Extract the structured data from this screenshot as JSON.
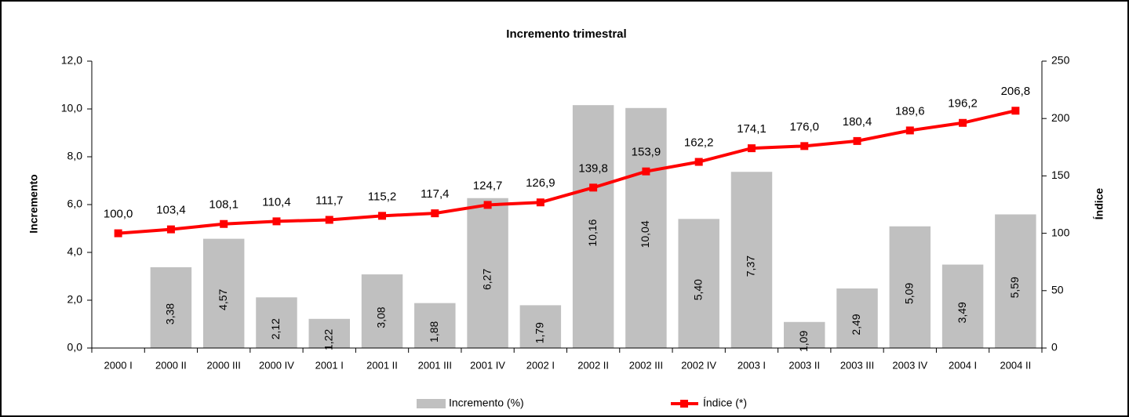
{
  "chart_data": {
    "type": "bar",
    "title": "Incremento trimestral",
    "y_label": "Incremento",
    "y2_label": "Índice",
    "categories": [
      "2000 I",
      "2000 II",
      "2000 III",
      "2000 IV",
      "2001 I",
      "2001 II",
      "2001 III",
      "2001 IV",
      "2002 I",
      "2002 II",
      "2002 III",
      "2002 IV",
      "2003 I",
      "2003 II",
      "2003 III",
      "2003 IV",
      "2004 I",
      "2004 II"
    ],
    "series": [
      {
        "name": "Incremento (%)",
        "type": "bar",
        "color": "#c0c0c0",
        "values": [
          null,
          3.38,
          4.57,
          2.12,
          1.22,
          3.08,
          1.88,
          6.27,
          1.79,
          10.16,
          10.04,
          5.4,
          7.37,
          1.09,
          2.49,
          5.09,
          3.49,
          5.59
        ],
        "value_labels": [
          null,
          "3,38",
          "4,57",
          "2,12",
          "1,22",
          "3,08",
          "1,88",
          "6,27",
          "1,79",
          "10,16",
          "10,04",
          "5,40",
          "7,37",
          "1,09",
          "2,49",
          "5,09",
          "3,49",
          "5,59"
        ]
      },
      {
        "name": "Índice (*)",
        "type": "line",
        "axis": "y2",
        "color": "#ff0000",
        "values": [
          100.0,
          103.4,
          108.1,
          110.4,
          111.7,
          115.2,
          117.4,
          124.7,
          126.9,
          139.8,
          153.9,
          162.2,
          174.1,
          176.0,
          180.4,
          189.6,
          196.2,
          206.8
        ],
        "value_labels": [
          "100,0",
          "103,4",
          "108,1",
          "110,4",
          "111,7",
          "115,2",
          "117,4",
          "124,7",
          "126,9",
          "139,8",
          "153,9",
          "162,2",
          "174,1",
          "176,0",
          "180,4",
          "189,6",
          "196,2",
          "206,8"
        ]
      }
    ],
    "ylim": [
      0,
      12
    ],
    "yticks": [
      {
        "value": 0,
        "label": "0,0"
      },
      {
        "value": 2,
        "label": "2,0"
      },
      {
        "value": 4,
        "label": "4,0"
      },
      {
        "value": 6,
        "label": "6,0"
      },
      {
        "value": 8,
        "label": "8,0"
      },
      {
        "value": 10,
        "label": "10,0"
      },
      {
        "value": 12,
        "label": "12,0"
      }
    ],
    "y2lim": [
      0,
      250
    ],
    "y2ticks": [
      0,
      50,
      100,
      150,
      200,
      250
    ],
    "legend": "bottom"
  }
}
